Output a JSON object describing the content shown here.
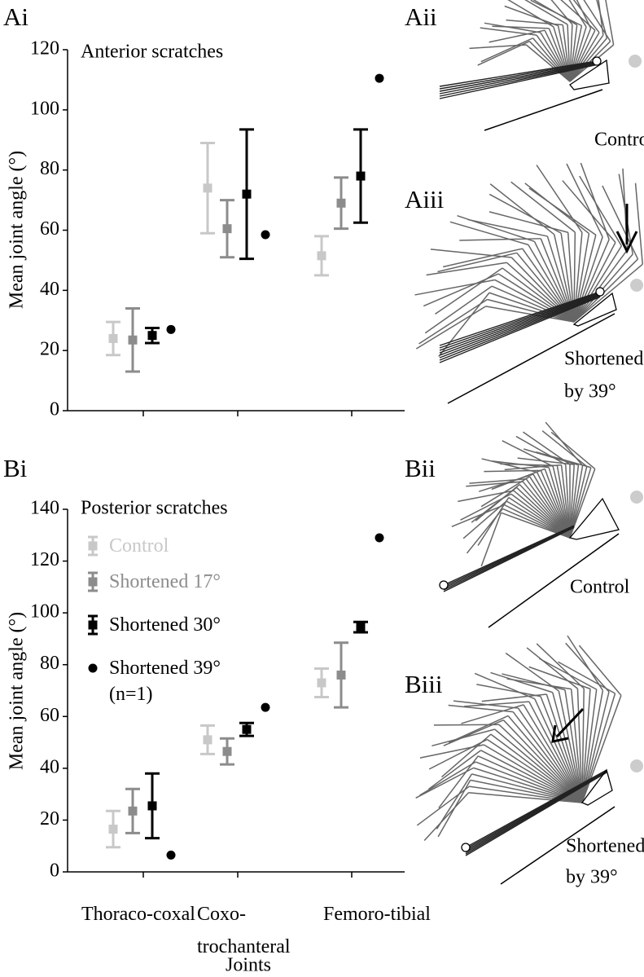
{
  "chart_data": [
    {
      "type": "errorbar",
      "title": "Anterior scratches",
      "y_label": "Mean joint angle (°)",
      "categories": [
        null,
        null,
        null
      ],
      "ylim": [
        0,
        120
      ],
      "yticks": [
        0,
        20,
        40,
        60,
        80,
        100,
        120
      ],
      "series": [
        {
          "color": "#c8c8c8",
          "marker": "square",
          "values": [
            24,
            74,
            51.5
          ],
          "errors": [
            5.5,
            15,
            6.5
          ]
        },
        {
          "color": "#8c8c8c",
          "marker": "square",
          "values": [
            23.5,
            60.5,
            69
          ],
          "errors": [
            10.5,
            9.5,
            8.5
          ]
        },
        {
          "color": "#000000",
          "marker": "square",
          "values": [
            25,
            72,
            78
          ],
          "errors": [
            2.5,
            21.5,
            15.5
          ]
        },
        {
          "color": "#000000",
          "marker": "circle",
          "values": [
            27,
            58.5,
            110.5
          ]
        }
      ]
    },
    {
      "type": "errorbar",
      "title": "Posterior scratches",
      "y_label": "Mean joint angle (°)",
      "x_label": "Joints",
      "categories": [
        "Thoraco-coxal",
        "Coxo-trochanteral",
        "Femoro-tibial"
      ],
      "ylim": [
        0,
        140
      ],
      "yticks": [
        0,
        20,
        40,
        60,
        80,
        100,
        120,
        140
      ],
      "legend": "upper-left",
      "series": [
        {
          "name": "Control",
          "color": "#c8c8c8",
          "marker": "square",
          "values": [
            16.5,
            51,
            73
          ],
          "errors": [
            7,
            5.5,
            5.5
          ]
        },
        {
          "name": "Shortened 17°",
          "color": "#8c8c8c",
          "marker": "square",
          "values": [
            23.5,
            46.5,
            76
          ],
          "errors": [
            8.5,
            5,
            12.5
          ]
        },
        {
          "name": "Shortened 30°",
          "color": "#000000",
          "marker": "square",
          "values": [
            25.5,
            55,
            94.5
          ],
          "errors": [
            12.5,
            2.5,
            2
          ]
        },
        {
          "name": "Shortened 39° (n=1)",
          "color": "#000000",
          "marker": "circle",
          "values": [
            6.5,
            63.5,
            129
          ]
        }
      ]
    }
  ],
  "panel_labels": [
    "Ai",
    "Bi"
  ],
  "diagrams": [
    {
      "label": "Aii",
      "caption": [
        "Control"
      ]
    },
    {
      "label": "Aiii",
      "caption": [
        "Shortened",
        "by 39°"
      ]
    },
    {
      "label": "Bii",
      "caption": [
        "Control"
      ]
    },
    {
      "label": "Biii",
      "caption": [
        "Shortened",
        "by 39°"
      ]
    }
  ]
}
